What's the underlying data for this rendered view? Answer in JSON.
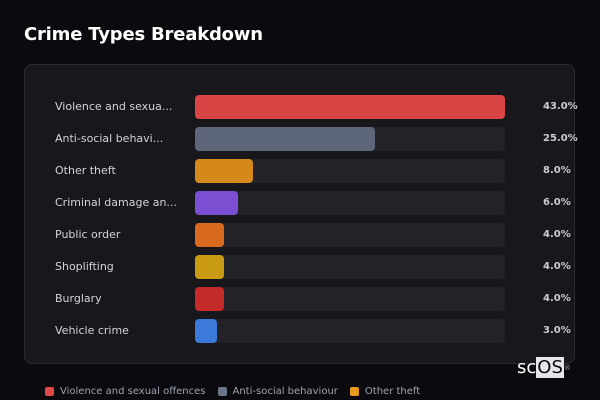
{
  "title": "Crime Types Breakdown",
  "brand": {
    "prefix": "sc",
    "highlight": "OS",
    "mark": "®"
  },
  "chart_data": {
    "type": "bar",
    "orientation": "horizontal",
    "title": "Crime Types Breakdown",
    "xlabel": "",
    "ylabel": "",
    "unit": "%",
    "xlim": [
      0,
      43
    ],
    "categories": [
      "Violence and sexual offences",
      "Anti-social behaviour",
      "Other theft",
      "Criminal damage and arson",
      "Public order",
      "Shoplifting",
      "Burglary",
      "Vehicle crime"
    ],
    "display_labels": [
      "Violence and sexua...",
      "Anti-social behavi...",
      "Other theft",
      "Criminal damage an...",
      "Public order",
      "Shoplifting",
      "Burglary",
      "Vehicle crime"
    ],
    "values": [
      43.0,
      25.0,
      8.0,
      6.0,
      4.0,
      4.0,
      4.0,
      3.0
    ],
    "value_labels": [
      "43.0%",
      "25.0%",
      "8.0%",
      "6.0%",
      "4.0%",
      "4.0%",
      "4.0%",
      "3.0%"
    ],
    "colors": [
      "#d94545",
      "#5d6779",
      "#d4891a",
      "#7b4fd1",
      "#d9691e",
      "#c99a13",
      "#c42a2a",
      "#3b7ad9"
    ],
    "legend": {
      "position": "bottom",
      "entries": [
        {
          "label": "Violence and sexual offences",
          "color": "#e14848"
        },
        {
          "label": "Anti-social behaviour",
          "color": "#6b7589"
        },
        {
          "label": "Other theft",
          "color": "#e99a1c"
        }
      ]
    },
    "grid": false
  }
}
